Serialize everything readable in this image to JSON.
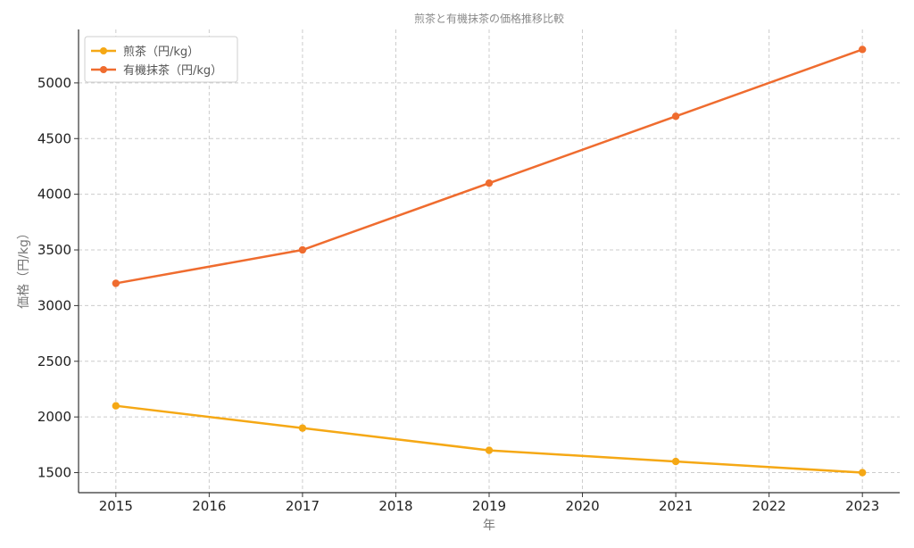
{
  "chart_data": {
    "type": "line",
    "title": "煎茶と有機抹茶の価格推移比較",
    "xlabel": "年",
    "ylabel": "価格（円/kg）",
    "x_ticks": [
      2015,
      2016,
      2017,
      2018,
      2019,
      2020,
      2021,
      2022,
      2023
    ],
    "y_ticks": [
      1500,
      2000,
      2500,
      3000,
      3500,
      4000,
      4500,
      5000
    ],
    "xlim": [
      2014.6,
      2023.4
    ],
    "ylim": [
      1320,
      5480
    ],
    "grid": true,
    "legend_position": "top-left",
    "series": [
      {
        "name": "煎茶（円/kg）",
        "color": "#f5a815",
        "x": [
          2015,
          2017,
          2019,
          2021,
          2023
        ],
        "values": [
          2100,
          1900,
          1700,
          1600,
          1500
        ]
      },
      {
        "name": "有機抹茶（円/kg）",
        "color": "#ef6c2f",
        "x": [
          2015,
          2017,
          2019,
          2021,
          2023
        ],
        "values": [
          3200,
          3500,
          4100,
          4700,
          5300
        ]
      }
    ]
  }
}
